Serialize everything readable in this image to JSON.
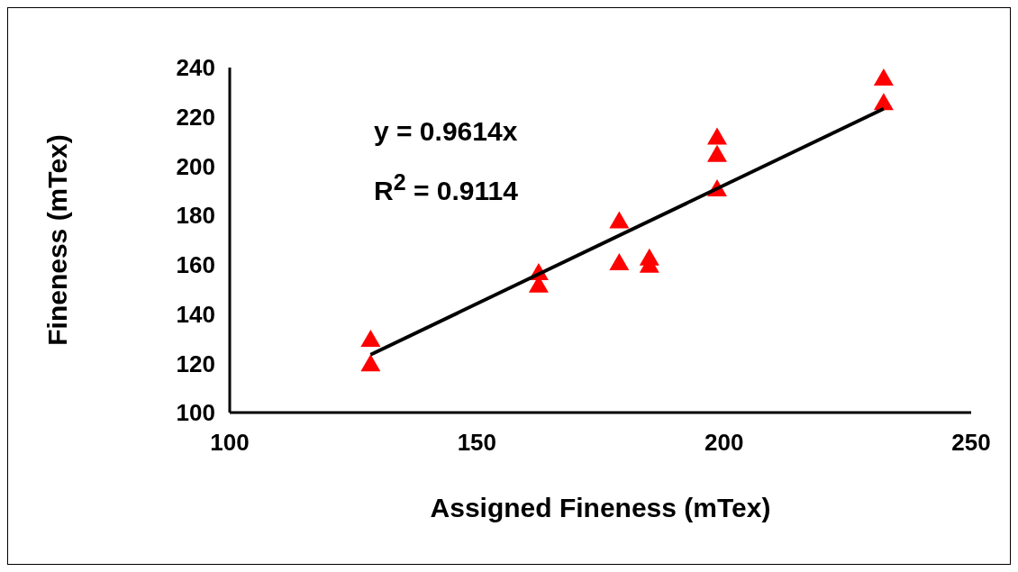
{
  "chart_data": {
    "type": "scatter",
    "xlabel": "Assigned Fineness (mTex)",
    "ylabel": "Fineness (mTex)",
    "annotations": [
      "y = 0.9614x",
      "R$^{2}$ = 0.9114"
    ],
    "xlim": [
      100,
      250
    ],
    "xticks": [
      100,
      150,
      200,
      250
    ],
    "ylim": [
      100,
      240
    ],
    "yticks": [
      100,
      120,
      140,
      160,
      180,
      200,
      220,
      240
    ],
    "grid": false,
    "legend": false,
    "marker": "triangle",
    "series": [
      {
        "color": "#ff0000",
        "x": [
          128.5,
          128.5,
          162.5,
          162.5,
          178.8,
          178.8,
          184.9,
          184.9,
          198.6,
          198.6,
          198.6,
          232.3,
          232.3
        ],
        "values": [
          130,
          120,
          157,
          152,
          178,
          161,
          163,
          160,
          212,
          205,
          191,
          236,
          226
        ]
      },
      {
        "type": "line",
        "color": "#000000",
        "marker": "none",
        "x": [
          128.5,
          232.3
        ],
        "values": [
          123.5,
          223.3
        ]
      }
    ]
  }
}
